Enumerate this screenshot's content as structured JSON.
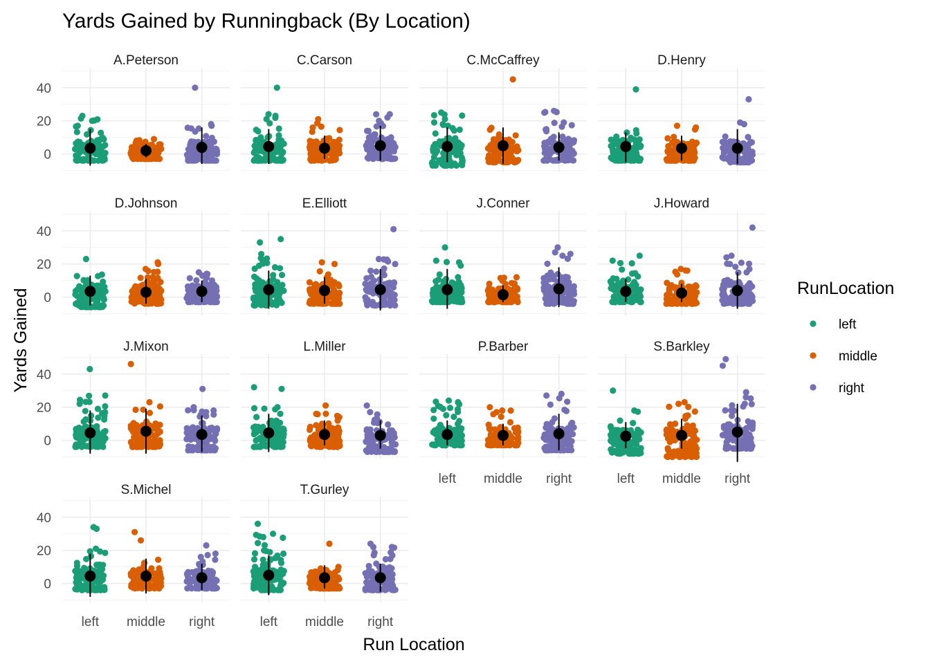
{
  "chart_data": {
    "type": "scatter",
    "title": "Yards Gained by Runningback (By Location)",
    "xlabel": "Run Location",
    "ylabel": "Yards Gained",
    "categories": [
      "left",
      "middle",
      "right"
    ],
    "y_ticks": [
      0,
      20,
      40
    ],
    "ylim": [
      -11,
      52
    ],
    "grid": true,
    "legend": {
      "title": "RunLocation",
      "position": "right",
      "entries": [
        {
          "label": "left",
          "color": "#1B9E77"
        },
        {
          "label": "middle",
          "color": "#D95F02"
        },
        {
          "label": "right",
          "color": "#7570B3"
        }
      ]
    },
    "summary_marker_color": "#000000",
    "panels": [
      {
        "name": "A.Peterson",
        "groups": [
          {
            "location": "left",
            "mean": 3.5,
            "low": -7,
            "high": 15,
            "min": -4,
            "max": 23,
            "extremes": [
              23,
              20,
              17
            ]
          },
          {
            "location": "middle",
            "mean": 2,
            "low": -2,
            "high": 6,
            "min": -3,
            "max": 9,
            "extremes": [
              9,
              8
            ]
          },
          {
            "location": "right",
            "mean": 4,
            "low": -6,
            "high": 16,
            "min": -4,
            "max": 18,
            "extremes": [
              40,
              18,
              17
            ]
          }
        ]
      },
      {
        "name": "C.Carson",
        "groups": [
          {
            "location": "left",
            "mean": 4.5,
            "low": -6,
            "high": 15,
            "min": -4,
            "max": 24,
            "extremes": [
              40,
              24,
              23
            ]
          },
          {
            "location": "middle",
            "mean": 3.5,
            "low": -3,
            "high": 11,
            "min": -4,
            "max": 21,
            "extremes": [
              21,
              16
            ]
          },
          {
            "location": "right",
            "mean": 5,
            "low": -4,
            "high": 17,
            "min": -3,
            "max": 24,
            "extremes": [
              24,
              22,
              20
            ]
          }
        ]
      },
      {
        "name": "C.McCaffrey",
        "groups": [
          {
            "location": "left",
            "mean": 4.5,
            "low": -5,
            "high": 16,
            "min": -7,
            "max": 25,
            "extremes": [
              25,
              21,
              18
            ]
          },
          {
            "location": "middle",
            "mean": 5,
            "low": -6,
            "high": 16,
            "min": -5,
            "max": 16,
            "extremes": [
              45
            ]
          },
          {
            "location": "right",
            "mean": 4,
            "low": -4,
            "high": 13,
            "min": -4,
            "max": 26,
            "extremes": [
              26,
              19,
              15
            ]
          }
        ]
      },
      {
        "name": "D.Henry",
        "groups": [
          {
            "location": "left",
            "mean": 4.5,
            "low": -5,
            "high": 13,
            "min": -4,
            "max": 15,
            "extremes": [
              39
            ]
          },
          {
            "location": "middle",
            "mean": 3.5,
            "low": -4,
            "high": 11,
            "min": -4,
            "max": 16,
            "extremes": [
              17,
              16
            ]
          },
          {
            "location": "right",
            "mean": 3.5,
            "low": -6,
            "high": 15,
            "min": -5,
            "max": 19,
            "extremes": [
              33,
              19,
              18
            ]
          }
        ]
      },
      {
        "name": "D.Johnson",
        "groups": [
          {
            "location": "left",
            "mean": 3.5,
            "low": -5,
            "high": 13,
            "min": -6,
            "max": 15,
            "extremes": [
              23
            ]
          },
          {
            "location": "middle",
            "mean": 3,
            "low": -4,
            "high": 11,
            "min": -4,
            "max": 17,
            "extremes": [
              21,
              20,
              17
            ]
          },
          {
            "location": "right",
            "mean": 3.5,
            "low": -3,
            "high": 10,
            "min": -3,
            "max": 15,
            "extremes": [
              15,
              13
            ]
          }
        ]
      },
      {
        "name": "E.Elliott",
        "groups": [
          {
            "location": "left",
            "mean": 4.5,
            "low": -7,
            "high": 16,
            "min": -5,
            "max": 24,
            "extremes": [
              35,
              33,
              26
            ]
          },
          {
            "location": "middle",
            "mean": 4,
            "low": -4,
            "high": 12,
            "min": -4,
            "max": 21,
            "extremes": [
              21,
              20
            ]
          },
          {
            "location": "right",
            "mean": 4.5,
            "low": -8,
            "high": 17,
            "min": -5,
            "max": 23,
            "extremes": [
              41,
              23,
              20
            ]
          }
        ]
      },
      {
        "name": "J.Conner",
        "groups": [
          {
            "location": "left",
            "mean": 4.5,
            "low": -7,
            "high": 17,
            "min": -3,
            "max": 22,
            "extremes": [
              30,
              22,
              21
            ]
          },
          {
            "location": "middle",
            "mean": 1.5,
            "low": -3,
            "high": 7,
            "min": -3,
            "max": 12,
            "extremes": [
              12
            ]
          },
          {
            "location": "right",
            "mean": 5,
            "low": -6,
            "high": 18,
            "min": -4,
            "max": 27,
            "extremes": [
              30,
              27,
              25
            ]
          }
        ]
      },
      {
        "name": "J.Howard",
        "groups": [
          {
            "location": "left",
            "mean": 3.5,
            "low": -3,
            "high": 11,
            "min": -3,
            "max": 22,
            "extremes": [
              25,
              22
            ]
          },
          {
            "location": "middle",
            "mean": 2.5,
            "low": -3,
            "high": 8,
            "min": -4,
            "max": 17,
            "extremes": [
              17,
              16
            ]
          },
          {
            "location": "right",
            "mean": 4,
            "low": -7,
            "high": 15,
            "min": -4,
            "max": 25,
            "extremes": [
              42,
              25,
              20
            ]
          }
        ]
      },
      {
        "name": "J.Mixon",
        "groups": [
          {
            "location": "left",
            "mean": 4.5,
            "low": -8,
            "high": 18,
            "min": -4,
            "max": 27,
            "extremes": [
              43,
              27,
              22
            ]
          },
          {
            "location": "middle",
            "mean": 5.5,
            "low": -8,
            "high": 19,
            "min": -4,
            "max": 23,
            "extremes": [
              46,
              23
            ]
          },
          {
            "location": "right",
            "mean": 3.5,
            "low": -7,
            "high": 15,
            "min": -6,
            "max": 20,
            "extremes": [
              31,
              20,
              18
            ]
          }
        ]
      },
      {
        "name": "L.Miller",
        "groups": [
          {
            "location": "left",
            "mean": 4.5,
            "low": -7,
            "high": 16,
            "min": -4,
            "max": 20,
            "extremes": [
              32,
              31,
              20
            ]
          },
          {
            "location": "middle",
            "mean": 3.5,
            "low": -3,
            "high": 12,
            "min": -4,
            "max": 16,
            "extremes": [
              21,
              16
            ]
          },
          {
            "location": "right",
            "mean": 3,
            "low": -5,
            "high": 12,
            "min": -7,
            "max": 17,
            "extremes": [
              21,
              17
            ]
          }
        ]
      },
      {
        "name": "P.Barber",
        "groups": [
          {
            "location": "left",
            "mean": 3.5,
            "low": -3,
            "high": 12,
            "min": -3,
            "max": 24,
            "extremes": [
              24,
              23
            ]
          },
          {
            "location": "middle",
            "mean": 3,
            "low": -3,
            "high": 10,
            "min": -3,
            "max": 18,
            "extremes": [
              20,
              18,
              17
            ]
          },
          {
            "location": "right",
            "mean": 4,
            "low": -6,
            "high": 16,
            "min": -6,
            "max": 28,
            "extremes": [
              28,
              27
            ]
          }
        ]
      },
      {
        "name": "S.Barkley",
        "groups": [
          {
            "location": "left",
            "mean": 2.5,
            "low": -5,
            "high": 11,
            "min": -8,
            "max": 18,
            "extremes": [
              30,
              18
            ]
          },
          {
            "location": "middle",
            "mean": 3,
            "low": -5,
            "high": 13,
            "min": -10,
            "max": 22,
            "extremes": [
              23,
              22
            ]
          },
          {
            "location": "right",
            "mean": 5,
            "low": -13,
            "high": 22,
            "min": -5,
            "max": 26,
            "extremes": [
              49,
              45,
              29,
              26
            ]
          }
        ]
      },
      {
        "name": "S.Michel",
        "groups": [
          {
            "location": "left",
            "mean": 4.5,
            "low": -8,
            "high": 18,
            "min": -4,
            "max": 21,
            "extremes": [
              34,
              33,
              21
            ]
          },
          {
            "location": "middle",
            "mean": 4.5,
            "low": -6,
            "high": 15,
            "min": -3,
            "max": 15,
            "extremes": [
              31,
              26
            ]
          },
          {
            "location": "right",
            "mean": 3.5,
            "low": -4,
            "high": 12,
            "min": -3,
            "max": 18,
            "extremes": [
              23,
              18
            ]
          }
        ]
      },
      {
        "name": "T.Gurley",
        "groups": [
          {
            "location": "left",
            "mean": 5,
            "low": -7,
            "high": 17,
            "min": -4,
            "max": 30,
            "extremes": [
              36,
              30,
              28
            ]
          },
          {
            "location": "middle",
            "mean": 3.5,
            "low": -3,
            "high": 11,
            "min": -3,
            "max": 12,
            "extremes": [
              24
            ]
          },
          {
            "location": "right",
            "mean": 3.5,
            "low": -5,
            "high": 12,
            "min": -4,
            "max": 22,
            "extremes": [
              24,
              22
            ]
          }
        ]
      }
    ]
  }
}
